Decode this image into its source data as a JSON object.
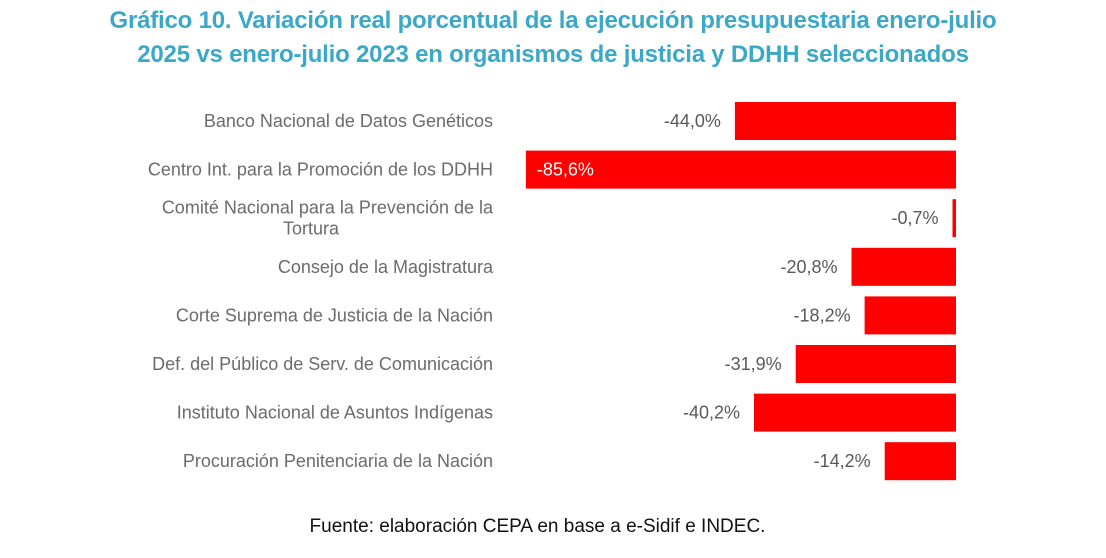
{
  "header": {
    "title_line1": "Gráfico 10. Variación real porcentual de la ejecución presupuestaria enero-julio",
    "title_line2": "2025 vs enero-julio 2023 en organismos de justicia y DDHH seleccionados"
  },
  "footer": {
    "source": "Fuente: elaboración CEPA en base a e-Sidif e INDEC."
  },
  "colors": {
    "title": "#3aa8c6",
    "bar": "#ff0000",
    "category_text": "#6b6b6b",
    "value_text": "#595959"
  },
  "chart_data": {
    "type": "bar",
    "orientation": "horizontal",
    "title": "Gráfico 10. Variación real porcentual de la ejecución presupuestaria enero-julio 2025 vs enero-julio 2023 en organismos de justicia y DDHH seleccionados",
    "xlabel": "",
    "ylabel": "",
    "xlim": [
      -86,
      0
    ],
    "grid": false,
    "legend": "none",
    "categories": [
      [
        "Banco Nacional de Datos Genéticos"
      ],
      [
        "Centro Int. para la Promoción de los DDHH"
      ],
      [
        "Comité Nacional para la Prevención de la",
        "Tortura"
      ],
      [
        "Consejo de la Magistratura"
      ],
      [
        "Corte Suprema de Justicia de la Nación"
      ],
      [
        "Def. del Público de Serv. de Comunicación"
      ],
      [
        "Instituto Nacional de Asuntos Indígenas"
      ],
      [
        "Procuración Penitenciaria de la Nación"
      ]
    ],
    "values": [
      -44.0,
      -85.6,
      -0.7,
      -20.8,
      -18.2,
      -31.9,
      -40.2,
      -14.2
    ],
    "data_labels": [
      "-44,0%",
      "-85,6%",
      "-0,7%",
      "-20,8%",
      "-18,2%",
      "-31,9%",
      "-40,2%",
      "-14,2%"
    ],
    "inside_label_indices": [
      1
    ]
  }
}
